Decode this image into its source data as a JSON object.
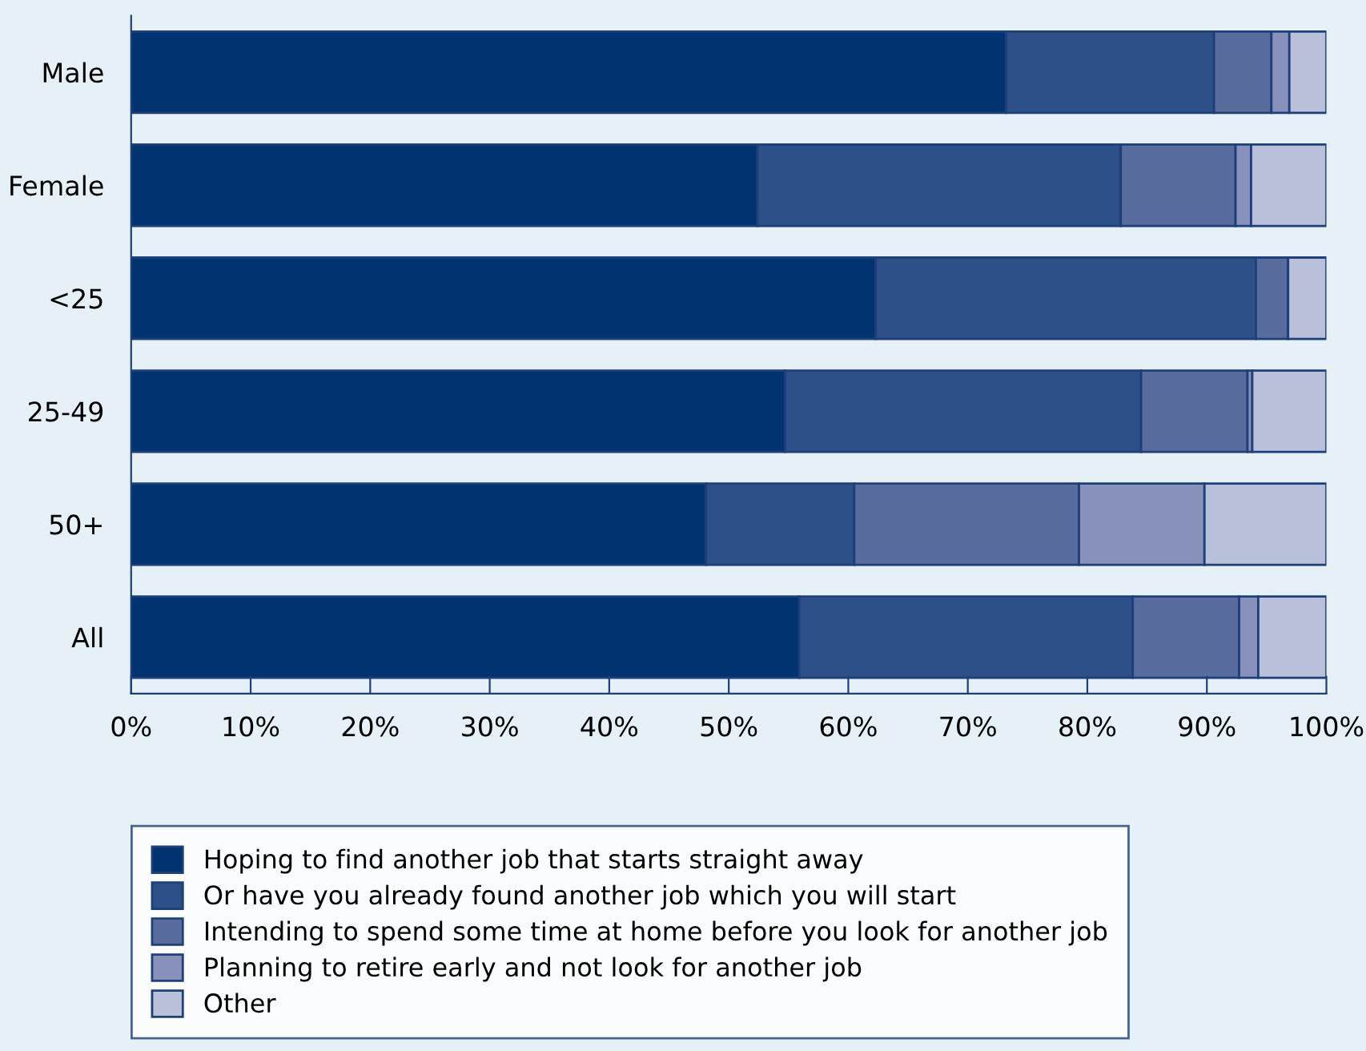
{
  "chart_data": {
    "type": "bar",
    "orientation": "horizontal",
    "stacked": true,
    "categories": [
      "Male",
      "Female",
      "<25",
      "25-49",
      "50+",
      "All"
    ],
    "series": [
      {
        "name": "Hoping to find another job that starts straight away",
        "color": "#00336f",
        "values": [
          73.2,
          52.4,
          62.3,
          54.7,
          48.1,
          55.9
        ]
      },
      {
        "name": "Or have you already found another job which you will start",
        "color": "#2d5089",
        "values": [
          17.4,
          30.4,
          31.8,
          29.8,
          12.4,
          27.9
        ]
      },
      {
        "name": "Intending to spend some time at home before you look for another job",
        "color": "#586d9e",
        "values": [
          4.8,
          9.6,
          2.7,
          8.9,
          18.8,
          8.9
        ]
      },
      {
        "name": "Planning to retire early and not look for another job",
        "color": "#8791bb",
        "values": [
          1.5,
          1.3,
          0,
          0.4,
          10.5,
          1.6
        ]
      },
      {
        "name": "Other",
        "color": "#b8c0da",
        "values": [
          3.1,
          6.3,
          3.2,
          6.2,
          10.2,
          5.7
        ]
      }
    ],
    "xlim": [
      0,
      100
    ],
    "xticks": [
      {
        "value": 0,
        "label": "0%"
      },
      {
        "value": 10,
        "label": "10%"
      },
      {
        "value": 20,
        "label": "20%"
      },
      {
        "value": 30,
        "label": "30%"
      },
      {
        "value": 40,
        "label": "40%"
      },
      {
        "value": 50,
        "label": "50%"
      },
      {
        "value": 60,
        "label": "60%"
      },
      {
        "value": 70,
        "label": "70%"
      },
      {
        "value": 80,
        "label": "80%"
      },
      {
        "value": 90,
        "label": "90%"
      },
      {
        "value": 100,
        "label": "100%"
      }
    ],
    "grid": false,
    "legend": "bottom"
  }
}
